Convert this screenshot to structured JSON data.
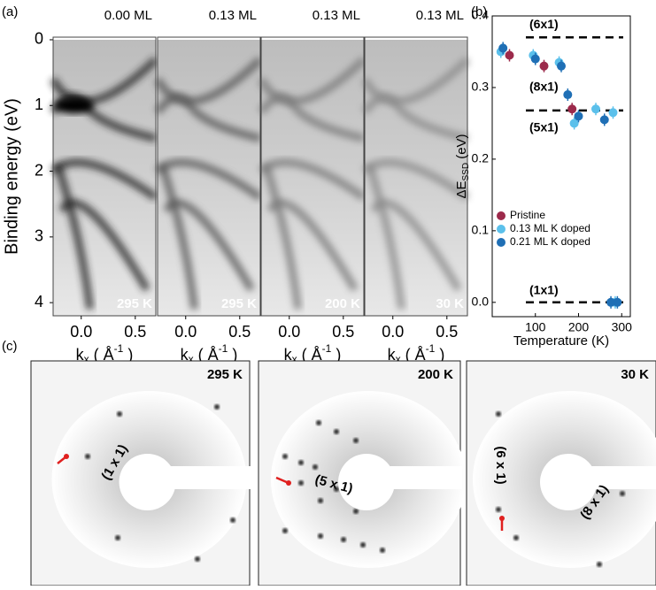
{
  "panel_a": {
    "label": "(a)",
    "ylabel": "Binding energy (eV)",
    "xlabel_parts": [
      "k",
      "x",
      " ( Å",
      "-1",
      " )"
    ],
    "ylim": [
      -0.04,
      4.2
    ],
    "yticks": [
      0,
      1,
      2,
      3,
      4
    ],
    "xlim": [
      -0.26,
      0.69
    ],
    "xticks": [
      {
        "value": 0,
        "label": "0.0"
      },
      {
        "value": 0.5,
        "label": "0.5"
      }
    ],
    "images": [
      {
        "coverage": "0.00 ML",
        "temperature": "295 K"
      },
      {
        "coverage": "0.13 ML",
        "temperature": "295 K"
      },
      {
        "coverage": "0.13 ML",
        "temperature": "200 K"
      },
      {
        "coverage": "0.13 ML",
        "temperature": "30 K"
      }
    ]
  },
  "chart_data": {
    "type": "scatter",
    "label": "(b)",
    "ylabel_parts": [
      "ΔE",
      "SSD",
      " (eV)"
    ],
    "xlabel": "Temperature (K)",
    "xlim": [
      0,
      320
    ],
    "xticks": [
      100,
      200,
      300
    ],
    "ylim": [
      -0.02,
      0.4
    ],
    "yticks": [
      {
        "value": 0,
        "label": "0.0"
      },
      {
        "value": 0.1,
        "label": "0.1"
      },
      {
        "value": 0.2,
        "label": "0.2"
      },
      {
        "value": 0.3,
        "label": "0.3"
      },
      {
        "value": 0.4,
        "label": "0.4"
      }
    ],
    "hlines": [
      0.37,
      0.268,
      0
    ],
    "hline_labels": [
      "(6x1)",
      "(8x1)",
      "(5x1)",
      "(1x1)"
    ],
    "legend": "lower left",
    "series": [
      {
        "name": "Pristine",
        "color": "#9c2a4b",
        "x": [
          40,
          120,
          185
        ],
        "values": [
          0.345,
          0.33,
          0.27
        ]
      },
      {
        "name": "0.13 ML K doped",
        "color": "#5bc0eb",
        "x": [
          20,
          95,
          155,
          190,
          240,
          280,
          285
        ],
        "values": [
          0.35,
          0.345,
          0.335,
          0.25,
          0.27,
          0.265,
          0
        ]
      },
      {
        "name": "0.21 ML K doped",
        "color": "#1f6fb5",
        "x": [
          25,
          100,
          160,
          175,
          200,
          260,
          275,
          290
        ],
        "values": [
          0.355,
          0.34,
          0.33,
          0.29,
          0.26,
          0.255,
          0,
          0
        ]
      }
    ]
  },
  "panel_c": {
    "label": "(c)",
    "images": [
      {
        "temperature": "295 K",
        "annotations": [
          "(1 x 1)"
        ]
      },
      {
        "temperature": "200 K",
        "annotations": [
          "(5 x 1)"
        ]
      },
      {
        "temperature": "30 K",
        "annotations": [
          "(6 x 1)",
          "(8 x 1)"
        ]
      }
    ]
  }
}
